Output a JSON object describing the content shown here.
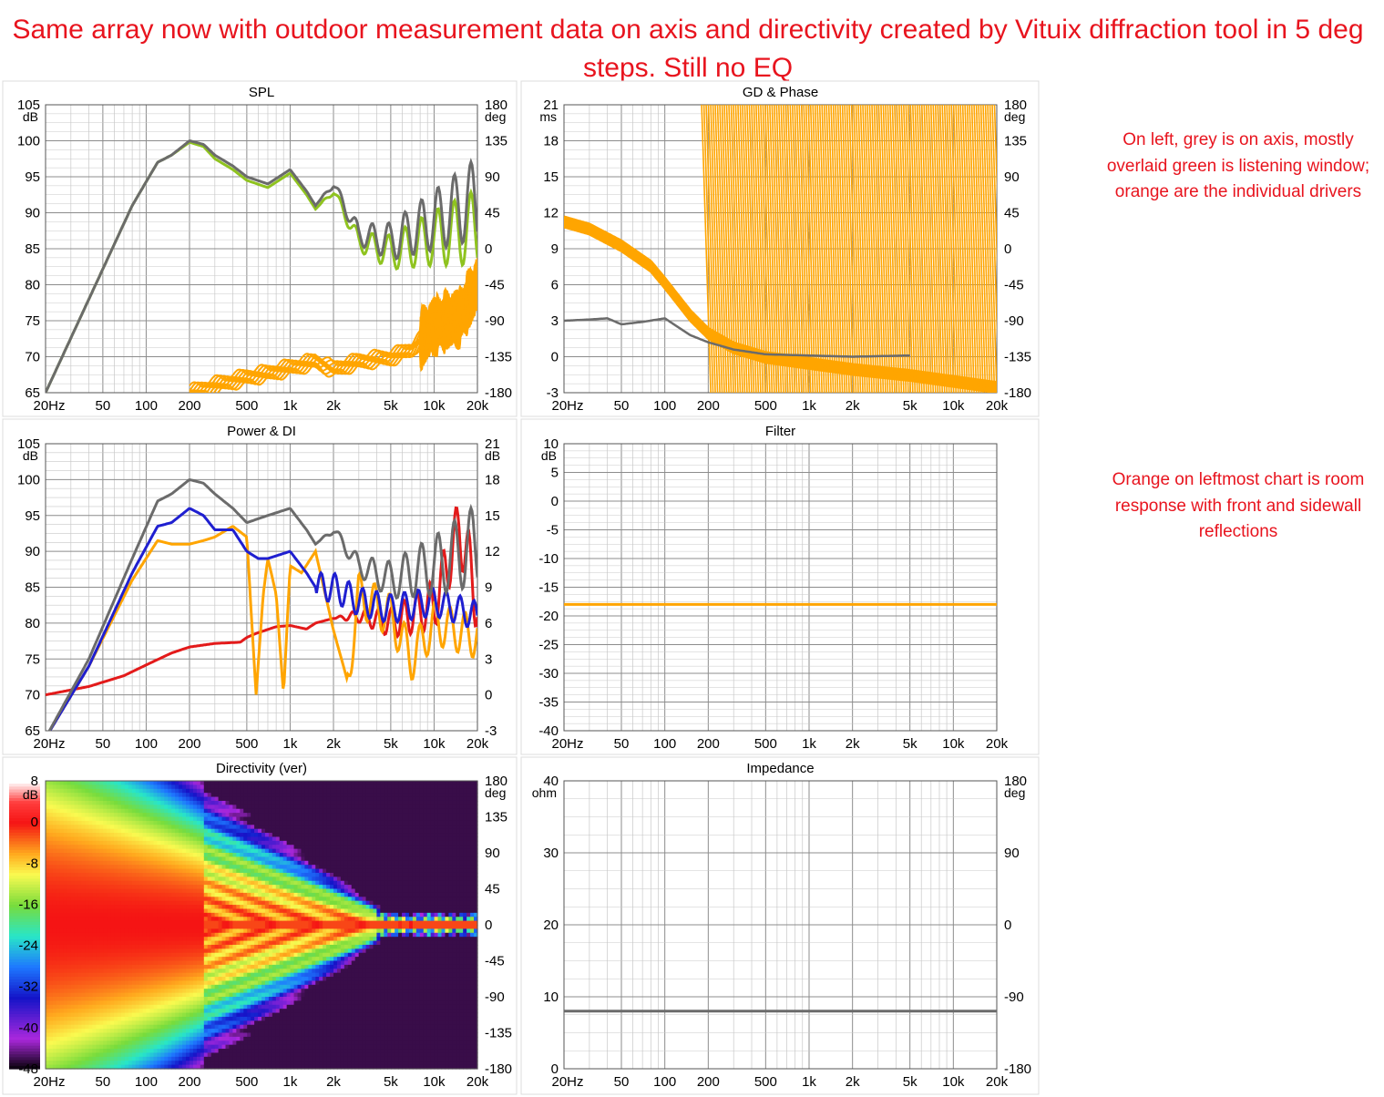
{
  "page": {
    "title": "Same array now with outdoor measurement data on axis and directivity created by Vituix diffraction tool in 5 deg steps.  Still no EQ",
    "note_top": "On left, grey is on axis, mostly overlaid green is listening window; orange are the individual drivers",
    "note_mid": "Orange on leftmost chart is room response with front and sidewall reflections"
  },
  "colors": {
    "grey": "#6b6b6b",
    "green": "#8fc31f",
    "orange": "#ffa500",
    "blue": "#1f1fd0",
    "red": "#e31a1a",
    "grid": "#c8c8c8",
    "gridMajor": "#8c8c8c"
  },
  "chart_data": [
    {
      "type": "line",
      "title": "SPL",
      "xlabel": "",
      "x_scale": "log",
      "xticks": [
        "20Hz",
        "50",
        "100",
        "200",
        "500",
        "1k",
        "2k",
        "5k",
        "10k",
        "20k"
      ],
      "yunit": "dB",
      "ylim": [
        65,
        105
      ],
      "yticks": [
        "105",
        "100",
        "95",
        "90",
        "85",
        "80",
        "75",
        "70",
        "65"
      ],
      "y2unit": "deg",
      "y2lim": [
        -180,
        180
      ],
      "y2ticks": [
        "180",
        "135",
        "90",
        "45",
        "0",
        "-45",
        "-90",
        "-135",
        "-180"
      ],
      "series": [
        {
          "color": "grey",
          "x": [
            20,
            40,
            80,
            120,
            150,
            200,
            250,
            300,
            400,
            500,
            700,
            1000,
            1300,
            1500,
            2000,
            3000,
            5000,
            10000,
            20000
          ],
          "y": [
            65,
            78,
            91,
            97,
            98,
            100,
            99.5,
            98,
            96.5,
            95,
            94,
            96,
            93,
            91,
            94,
            87,
            86,
            89,
            92
          ]
        },
        {
          "color": "green",
          "x": [
            20,
            40,
            80,
            120,
            150,
            200,
            250,
            300,
            400,
            500,
            700,
            1000,
            1300,
            1500,
            2000,
            3000,
            5000,
            10000,
            20000
          ],
          "y": [
            65,
            78,
            91,
            97,
            98,
            99.8,
            99.2,
            97.5,
            96,
            94.5,
            93.5,
            95.5,
            92.5,
            90.5,
            93,
            86,
            84.5,
            86.5,
            88
          ]
        },
        {
          "color": "orange",
          "x": [
            200,
            300,
            500,
            700,
            1000,
            1500,
            2000,
            3000,
            5000,
            7000,
            10000,
            15000,
            20000
          ],
          "y": [
            -180,
            -170,
            -160,
            -155,
            -148,
            -140,
            -150,
            -140,
            -135,
            -125,
            -95,
            -85,
            -45
          ]
        }
      ]
    },
    {
      "type": "line",
      "title": "GD & Phase",
      "x_scale": "log",
      "xticks": [
        "20Hz",
        "50",
        "100",
        "200",
        "500",
        "1k",
        "2k",
        "5k",
        "10k",
        "20k"
      ],
      "yunit": "ms",
      "ylim": [
        -3,
        21
      ],
      "yticks": [
        "21",
        "18",
        "15",
        "12",
        "9",
        "6",
        "3",
        "0",
        "-3"
      ],
      "y2unit": "deg",
      "y2lim": [
        -180,
        180
      ],
      "y2ticks": [
        "180",
        "135",
        "90",
        "45",
        "0",
        "-45",
        "-90",
        "-135",
        "-180"
      ],
      "series": [
        {
          "color": "grey",
          "x": [
            20,
            30,
            40,
            50,
            70,
            100,
            150,
            200,
            300,
            500,
            1000,
            2000,
            5000
          ],
          "y": [
            3,
            3.1,
            3.2,
            2.7,
            2.9,
            3.2,
            1.8,
            1.2,
            0.6,
            0.2,
            0.1,
            0,
            0.1
          ]
        },
        {
          "color": "orange",
          "x": [
            20,
            30,
            50,
            80,
            100,
            150,
            200,
            300,
            500,
            1000,
            2000,
            5000,
            10000,
            20000
          ],
          "y": [
            11.3,
            10.7,
            9.3,
            7.6,
            6.2,
            3.5,
            2.0,
            0.8,
            0,
            -0.5,
            -1,
            -1.5,
            -2,
            -2.5
          ]
        }
      ]
    },
    {
      "type": "line",
      "title": "Power & DI",
      "x_scale": "log",
      "xticks": [
        "20Hz",
        "50",
        "100",
        "200",
        "500",
        "1k",
        "2k",
        "5k",
        "10k",
        "20k"
      ],
      "yunit": "dB",
      "ylim": [
        65,
        105
      ],
      "yticks": [
        "105",
        "100",
        "95",
        "90",
        "85",
        "80",
        "75",
        "70",
        "65"
      ],
      "y2unit": "dB",
      "y2lim": [
        -3,
        21
      ],
      "y2ticks": [
        "21",
        "18",
        "15",
        "12",
        "9",
        "6",
        "3",
        "0",
        "-3"
      ],
      "series": [
        {
          "color": "grey",
          "x": [
            20,
            40,
            80,
            120,
            150,
            200,
            250,
            300,
            400,
            500,
            700,
            1000,
            1300,
            1500,
            2000,
            3000,
            5000,
            10000,
            20000
          ],
          "y": [
            64,
            75,
            89,
            97,
            98,
            100,
            99.5,
            98,
            96,
            94,
            95,
            96,
            93,
            91,
            93,
            88,
            86,
            88,
            91
          ]
        },
        {
          "color": "blue",
          "x": [
            20,
            40,
            80,
            120,
            150,
            200,
            250,
            300,
            400,
            500,
            600,
            700,
            1000,
            1300,
            1500,
            2000,
            3000,
            5000,
            10000,
            20000
          ],
          "y": [
            64,
            74,
            87,
            93.5,
            94,
            96,
            95,
            93,
            93,
            90,
            89,
            89,
            90,
            87,
            85,
            85,
            83,
            82,
            83,
            81
          ]
        },
        {
          "color": "orange",
          "x": [
            20,
            40,
            80,
            120,
            150,
            200,
            250,
            300,
            400,
            500,
            580,
            650,
            700,
            800,
            900,
            1000,
            1200,
            1500,
            2000,
            2500,
            3000,
            5000,
            7000,
            10000,
            20000
          ],
          "y": [
            64,
            74,
            86,
            91.5,
            91,
            91,
            91.5,
            92,
            93.5,
            92,
            70,
            84,
            89,
            84,
            70,
            88,
            87,
            90,
            79,
            72,
            84,
            81,
            75,
            80,
            78
          ]
        },
        {
          "color": "red",
          "x": [
            20,
            40,
            70,
            100,
            150,
            200,
            300,
            450,
            500,
            600,
            800,
            1000,
            1300,
            1500,
            2000,
            3000,
            5000,
            10000,
            15000,
            20000
          ],
          "y": [
            0,
            0.7,
            1.6,
            2.5,
            3.5,
            4,
            4.3,
            4.4,
            4.8,
            5.2,
            5.7,
            5.8,
            5.5,
            6,
            6.4,
            6.6,
            6,
            7.5,
            14,
            8
          ]
        }
      ]
    },
    {
      "type": "line",
      "title": "Filter",
      "x_scale": "log",
      "xticks": [
        "20Hz",
        "50",
        "100",
        "200",
        "500",
        "1k",
        "2k",
        "5k",
        "10k",
        "20k"
      ],
      "yunit": "dB",
      "ylim": [
        -40,
        10
      ],
      "yticks": [
        "10",
        "5",
        "0",
        "-5",
        "-10",
        "-15",
        "-20",
        "-25",
        "-30",
        "-35",
        "-40"
      ],
      "series": [
        {
          "color": "orange",
          "x": [
            20,
            20000
          ],
          "y": [
            -18,
            -18
          ]
        }
      ]
    },
    {
      "type": "heatmap",
      "title": "Directivity (ver)",
      "x_scale": "log",
      "xticks": [
        "20Hz",
        "50",
        "100",
        "200",
        "500",
        "1k",
        "2k",
        "5k",
        "10k",
        "20k"
      ],
      "colorbar_unit": "dB",
      "colorbar_ticks": [
        "8",
        "0",
        "-8",
        "-16",
        "-24",
        "-32",
        "-40",
        "-48"
      ],
      "y2unit": "deg",
      "y2lim": [
        -180,
        180
      ],
      "y2ticks": [
        "180",
        "135",
        "90",
        "45",
        "0",
        "-45",
        "-90",
        "-135",
        "-180"
      ]
    },
    {
      "type": "line",
      "title": "Impedance",
      "x_scale": "log",
      "xticks": [
        "20Hz",
        "50",
        "100",
        "200",
        "500",
        "1k",
        "2k",
        "5k",
        "10k",
        "20k"
      ],
      "yunit": "ohm",
      "ylim": [
        0,
        40
      ],
      "yticks": [
        "40",
        "30",
        "20",
        "10",
        "0"
      ],
      "y2unit": "deg",
      "y2lim": [
        -180,
        180
      ],
      "y2ticks": [
        "180",
        "90",
        "0",
        "-90",
        "-180"
      ],
      "series": [
        {
          "color": "grey",
          "x": [
            20,
            20000
          ],
          "y": [
            8,
            8
          ]
        }
      ]
    }
  ]
}
